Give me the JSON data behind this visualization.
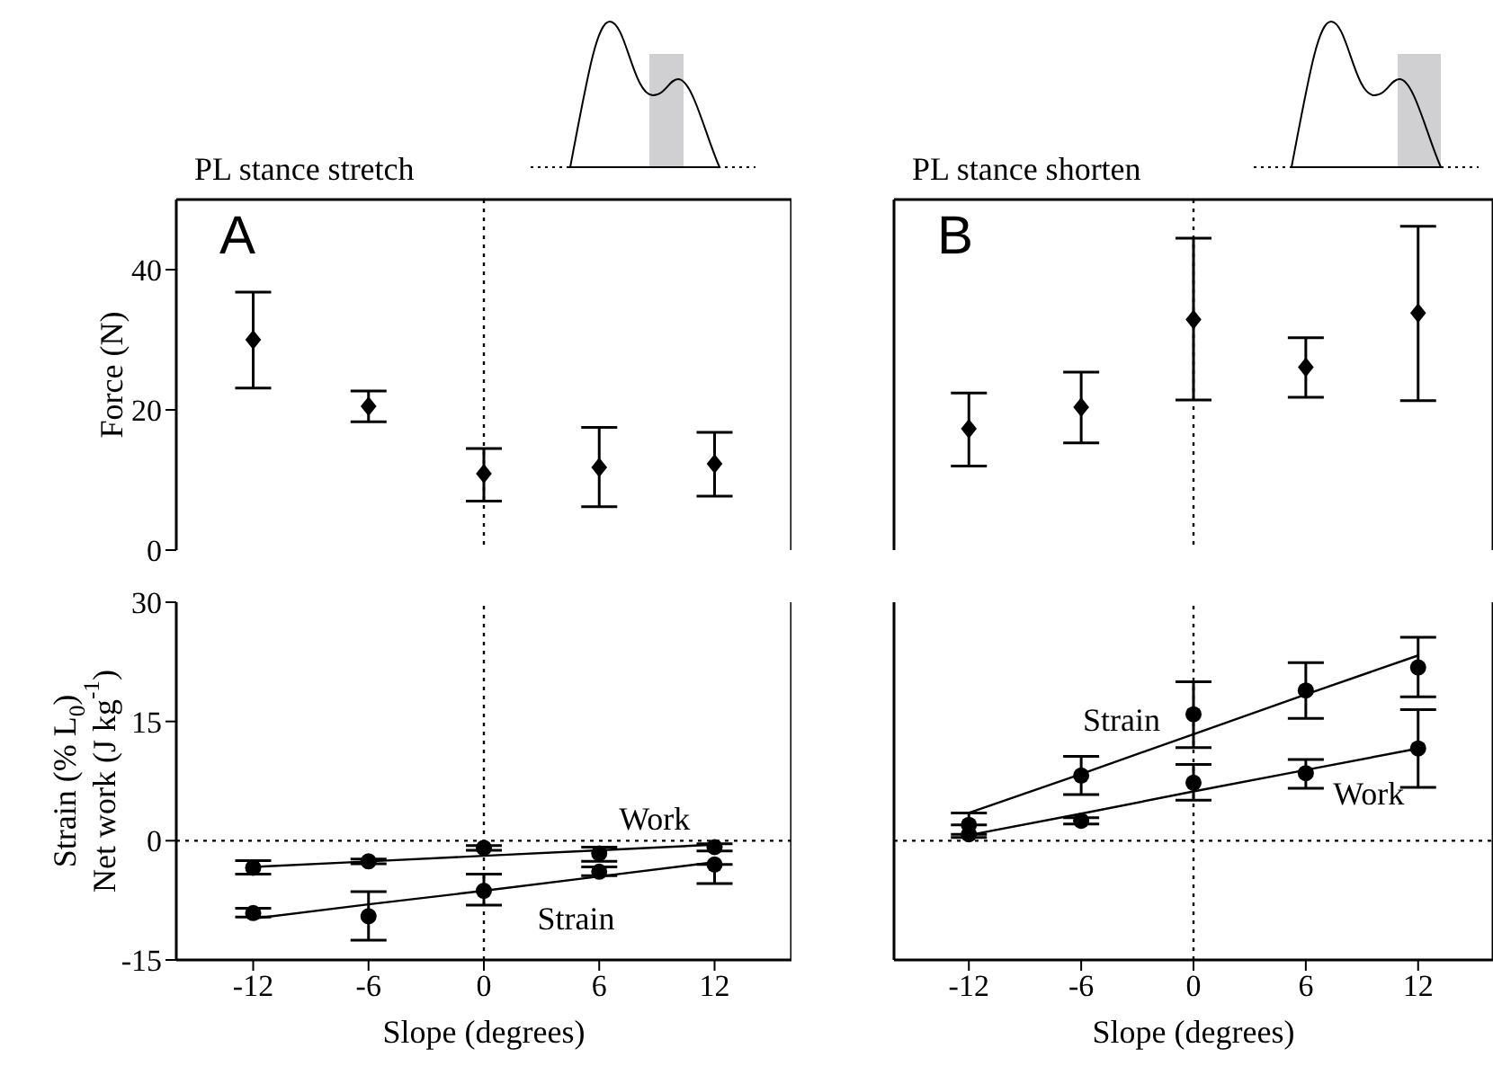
{
  "chart_data": [
    {
      "type": "scatter",
      "title": "PL stance stretch",
      "ylabel": "Force (N)",
      "xlim": [
        -16,
        16
      ],
      "xticks": [
        -12,
        -6,
        0,
        6,
        12
      ],
      "ylim": [
        0,
        50
      ],
      "yticks": [
        0,
        20,
        40
      ],
      "tick_labels": "y",
      "annotations": [
        "A"
      ],
      "ref_lines": [
        {
          "axis": "x",
          "value": 0,
          "line_style": "dotted"
        }
      ],
      "x": [
        -12,
        -6,
        0,
        6,
        12
      ],
      "series": [
        {
          "color": "#000000",
          "marker": "diamond",
          "values": [
            30,
            20.5,
            10.9,
            11.8,
            12.3
          ],
          "errors": [
            [
              23.1,
              36.8
            ],
            [
              18.3,
              22.7
            ],
            [
              7.0,
              14.5
            ],
            [
              6.2,
              17.5
            ],
            [
              7.7,
              16.8
            ]
          ]
        }
      ]
    },
    {
      "type": "scatter",
      "title": "PL stance shorten",
      "xlim": [
        -16,
        16
      ],
      "xticks": [
        -12,
        -6,
        0,
        6,
        12
      ],
      "ylim": [
        0,
        50
      ],
      "yticks": [
        0,
        20,
        40
      ],
      "tick_labels": false,
      "annotations": [
        "B"
      ],
      "ref_lines": [
        {
          "axis": "x",
          "value": 0,
          "line_style": "dotted"
        }
      ],
      "x": [
        -12,
        -6,
        0,
        6,
        12
      ],
      "series": [
        {
          "color": "#000000",
          "marker": "diamond",
          "values": [
            17.3,
            20.4,
            32.9,
            26.1,
            33.8
          ],
          "errors": [
            [
              12.0,
              22.4
            ],
            [
              15.3,
              25.4
            ],
            [
              21.4,
              44.5
            ],
            [
              21.8,
              30.3
            ],
            [
              21.3,
              46.2
            ]
          ]
        }
      ]
    },
    {
      "type": "scatter",
      "xlabel": "Slope (degrees)",
      "ylabel": "Strain (% L$_{0}$)\nNet work (J kg$^{-1}$)",
      "xlim": [
        -16,
        16
      ],
      "xticks": [
        -12,
        -6,
        0,
        6,
        12
      ],
      "ylim": [
        -15,
        30
      ],
      "yticks": [
        -15,
        0,
        15,
        30
      ],
      "ref_lines": [
        {
          "axis": "x",
          "value": 0,
          "line_style": "dotted"
        },
        {
          "axis": "y",
          "value": 0,
          "line_style": "dotted"
        }
      ],
      "x": [
        -12,
        -6,
        0,
        6,
        12
      ],
      "series": [
        {
          "color": "#000000",
          "marker": "circle",
          "values": [
            -9.1,
            -9.5,
            -6.3,
            -3.9,
            -3.0
          ],
          "errors": [
            [
              -9.6,
              -8.5
            ],
            [
              -12.5,
              -6.4
            ],
            [
              -8.1,
              -4.2
            ],
            [
              -4.4,
              -3.3
            ],
            [
              -5.4,
              -3.0
            ]
          ]
        },
        {
          "color": "#000000",
          "marker": "circle",
          "values": [
            -3.4,
            -2.6,
            -0.9,
            -1.6,
            -0.8
          ],
          "errors": [
            [
              -4.2,
              -2.5
            ],
            [
              -2.9,
              -2.3
            ],
            [
              -1.2,
              -0.6
            ],
            [
              -2.6,
              -0.8
            ],
            [
              -1.3,
              -0.4
            ]
          ]
        },
        {
          "type": "line",
          "name": "Strain",
          "color": "#000000",
          "marker": "none",
          "values": [
            -9.8,
            -8.0,
            -6.3,
            -4.5,
            -2.7
          ]
        },
        {
          "type": "line",
          "name": "Work",
          "color": "#000000",
          "marker": "none",
          "values": [
            -3.3,
            -2.6,
            -1.9,
            -1.2,
            -0.5
          ]
        }
      ]
    },
    {
      "type": "scatter",
      "xlabel": "Slope (degrees)",
      "xlim": [
        -16,
        16
      ],
      "xticks": [
        -12,
        -6,
        0,
        6,
        12
      ],
      "ylim": [
        -15,
        30
      ],
      "yticks": [
        -15,
        0,
        15,
        30
      ],
      "tick_labels": "x",
      "ref_lines": [
        {
          "axis": "x",
          "value": 0,
          "line_style": "dotted"
        },
        {
          "axis": "y",
          "value": 0,
          "line_style": "dotted"
        }
      ],
      "x": [
        -12,
        -6,
        0,
        6,
        12
      ],
      "series": [
        {
          "color": "#000000",
          "marker": "circle",
          "values": [
            2.0,
            8.2,
            15.9,
            18.9,
            21.8
          ],
          "errors": [
            [
              2.0,
              3.5
            ],
            [
              5.8,
              10.6
            ],
            [
              11.7,
              20.0
            ],
            [
              15.4,
              22.4
            ],
            [
              18.1,
              25.6
            ]
          ]
        },
        {
          "color": "#000000",
          "marker": "circle",
          "values": [
            0.8,
            2.5,
            7.3,
            8.5,
            11.6
          ],
          "errors": [
            [
              0.4,
              0.8
            ],
            [
              2.1,
              2.9
            ],
            [
              5.1,
              9.6
            ],
            [
              6.6,
              10.2
            ],
            [
              6.7,
              16.5
            ]
          ]
        },
        {
          "type": "line",
          "name": "Strain",
          "color": "#000000",
          "marker": "none",
          "values": [
            3.5,
            8.4,
            13.4,
            18.4,
            23.3
          ]
        },
        {
          "type": "line",
          "name": "Work",
          "color": "#000000",
          "marker": "none",
          "values": [
            0.7,
            3.4,
            6.2,
            8.9,
            11.6
          ]
        }
      ]
    }
  ]
}
